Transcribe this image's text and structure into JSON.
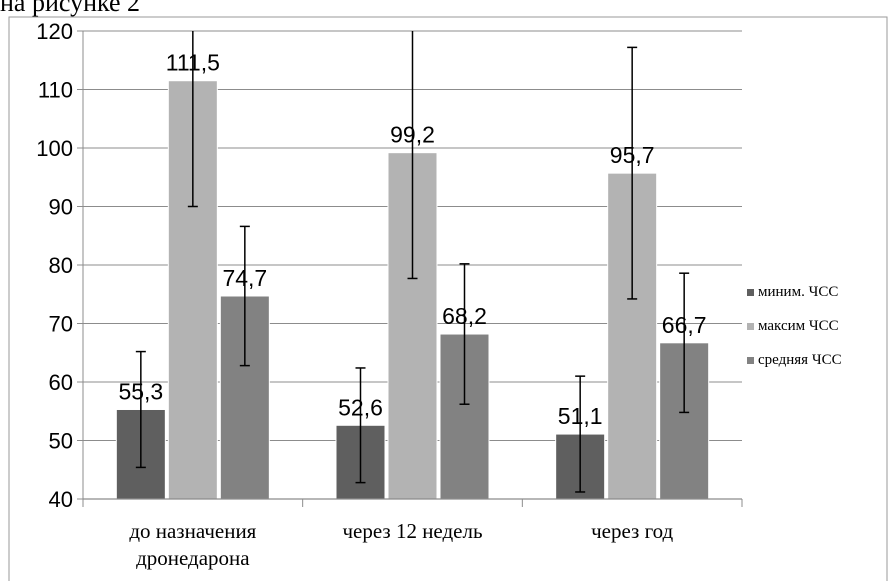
{
  "caption": "на рисунке 2",
  "chart_data": {
    "type": "bar",
    "categories": [
      [
        "до назначения",
        "дронедарона"
      ],
      [
        "через 12 недель"
      ],
      [
        "через год"
      ]
    ],
    "series": [
      {
        "name": "миним. ЧСС",
        "color": "#5f5f5f",
        "values": [
          55.3,
          52.6,
          51.1
        ],
        "labels": [
          "55,3",
          "52,6",
          "51,1"
        ],
        "err_low": [
          45.4,
          42.8,
          41.2
        ],
        "err_high": [
          65.2,
          62.4,
          61.0
        ]
      },
      {
        "name": "максим ЧСС",
        "color": "#b3b3b3",
        "values": [
          111.5,
          99.2,
          95.7
        ],
        "labels": [
          "111,5",
          "99,2",
          "95,7"
        ],
        "err_low": [
          90.0,
          77.7,
          74.2
        ],
        "err_high": [
          120,
          120,
          117.2
        ]
      },
      {
        "name": "средняя ЧСС",
        "color": "#828282",
        "values": [
          74.7,
          68.2,
          66.7
        ],
        "labels": [
          "74,7",
          "68,2",
          "66,7"
        ],
        "err_low": [
          62.8,
          56.2,
          54.8
        ],
        "err_high": [
          86.6,
          80.2,
          78.6
        ]
      }
    ],
    "yticks": [
      40,
      50,
      60,
      70,
      80,
      90,
      100,
      110,
      120
    ],
    "ylim": [
      40,
      120
    ],
    "grid": true,
    "legend_position": "right"
  }
}
